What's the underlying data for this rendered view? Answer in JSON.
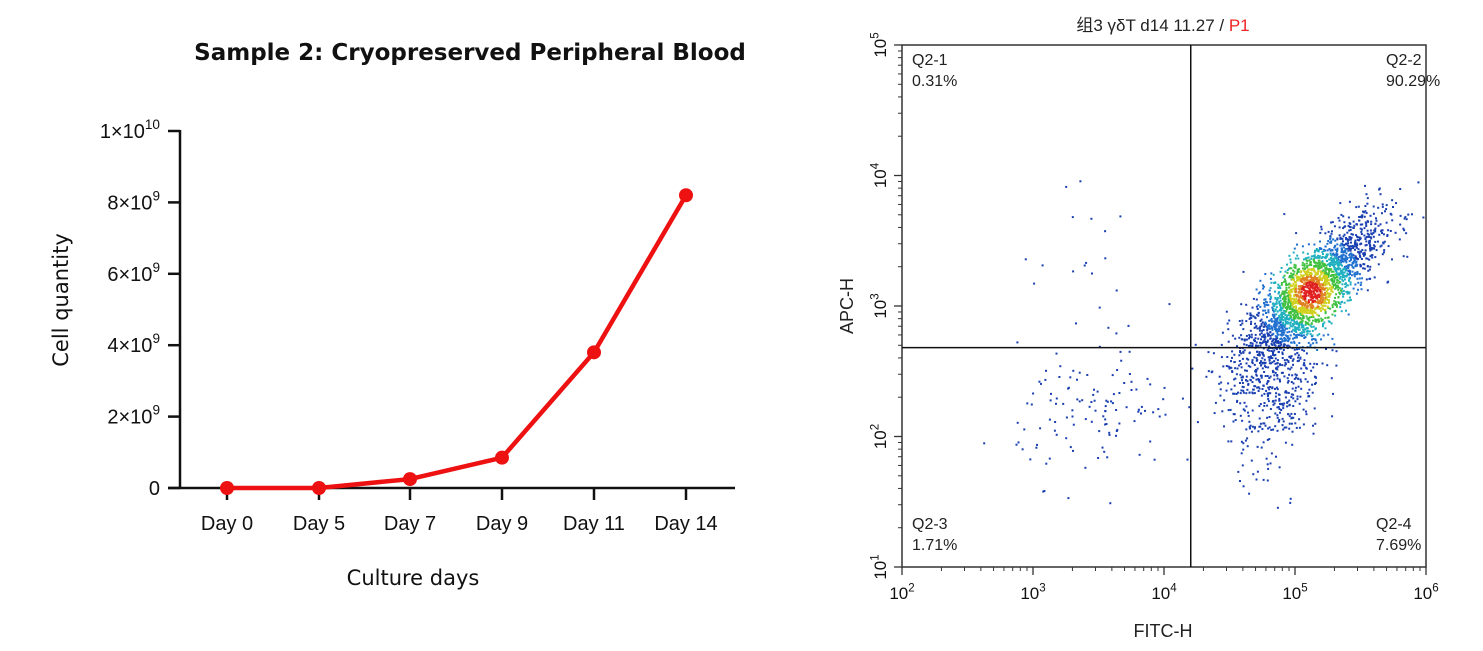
{
  "chart_data": [
    {
      "type": "line",
      "title": "Sample 2: Cryopreserved Peripheral Blood",
      "xlabel": "Culture days",
      "ylabel": "Cell quantity",
      "categories": [
        "Day 0",
        "Day 5",
        "Day 7",
        "Day 9",
        "Day 11",
        "Day 14"
      ],
      "series": [
        {
          "values": [
            0,
            0,
            250000000,
            850000000,
            3800000000,
            8200000000
          ]
        }
      ],
      "ylim": [
        0,
        10000000000
      ],
      "yticks": [
        {
          "value": 0,
          "base": "0",
          "exp": ""
        },
        {
          "value": 2000000000,
          "base": "2×10",
          "exp": "9"
        },
        {
          "value": 4000000000,
          "base": "4×10",
          "exp": "9"
        },
        {
          "value": 6000000000,
          "base": "6×10",
          "exp": "9"
        },
        {
          "value": 8000000000,
          "base": "8×10",
          "exp": "9"
        },
        {
          "value": 10000000000,
          "base": "1×10",
          "exp": "10"
        }
      ],
      "color": "#ee1111",
      "grid": false
    },
    {
      "type": "scatter",
      "title_parts": [
        "组3 γδT d14 11.27 / ",
        "P1"
      ],
      "title_colors": [
        "#222222",
        "#ee2222"
      ],
      "xlabel": "FITC-H",
      "ylabel": "APC-H",
      "xscale": "log",
      "yscale": "log",
      "xlim": [
        100,
        1000000
      ],
      "ylim": [
        10,
        100000
      ],
      "xticks": [
        {
          "value": 100,
          "base": "10",
          "exp": "2"
        },
        {
          "value": 1000,
          "base": "10",
          "exp": "3"
        },
        {
          "value": 10000,
          "base": "10",
          "exp": "4"
        },
        {
          "value": 100000,
          "base": "10",
          "exp": "5"
        },
        {
          "value": 1000000,
          "base": "10",
          "exp": "6"
        }
      ],
      "yticks": [
        {
          "value": 10,
          "base": "10",
          "exp": "1"
        },
        {
          "value": 100,
          "base": "10",
          "exp": "2"
        },
        {
          "value": 1000,
          "base": "10",
          "exp": "3"
        },
        {
          "value": 10000,
          "base": "10",
          "exp": "4"
        },
        {
          "value": 100000,
          "base": "10",
          "exp": "5"
        }
      ],
      "gate": {
        "x": 16000,
        "y": 480
      },
      "quadrants": [
        {
          "name": "Q2-1",
          "percent": "0.31%",
          "position": "top-left"
        },
        {
          "name": "Q2-2",
          "percent": "90.29%",
          "position": "top-right"
        },
        {
          "name": "Q2-3",
          "percent": "1.71%",
          "position": "bottom-left"
        },
        {
          "name": "Q2-4",
          "percent": "7.69%",
          "position": "bottom-right"
        }
      ],
      "populations": [
        {
          "center": [
            130000,
            1300
          ],
          "spread_log": [
            0.26,
            0.28
          ],
          "count": 2200,
          "corr": 0.8
        },
        {
          "center": [
            70000,
            300
          ],
          "spread_log": [
            0.18,
            0.35
          ],
          "count": 500,
          "corr": 0.3
        },
        {
          "center": [
            3000,
            150
          ],
          "spread_log": [
            0.3,
            0.25
          ],
          "count": 120,
          "corr": 0.0
        },
        {
          "center": [
            3000,
            1500
          ],
          "spread_log": [
            0.35,
            0.3
          ],
          "count": 20,
          "corr": 0.0
        }
      ],
      "density_colors": [
        "#1a3fb0",
        "#2070d0",
        "#20b0c0",
        "#40c040",
        "#d0d020",
        "#e08020",
        "#e02020"
      ],
      "grid": false
    }
  ]
}
